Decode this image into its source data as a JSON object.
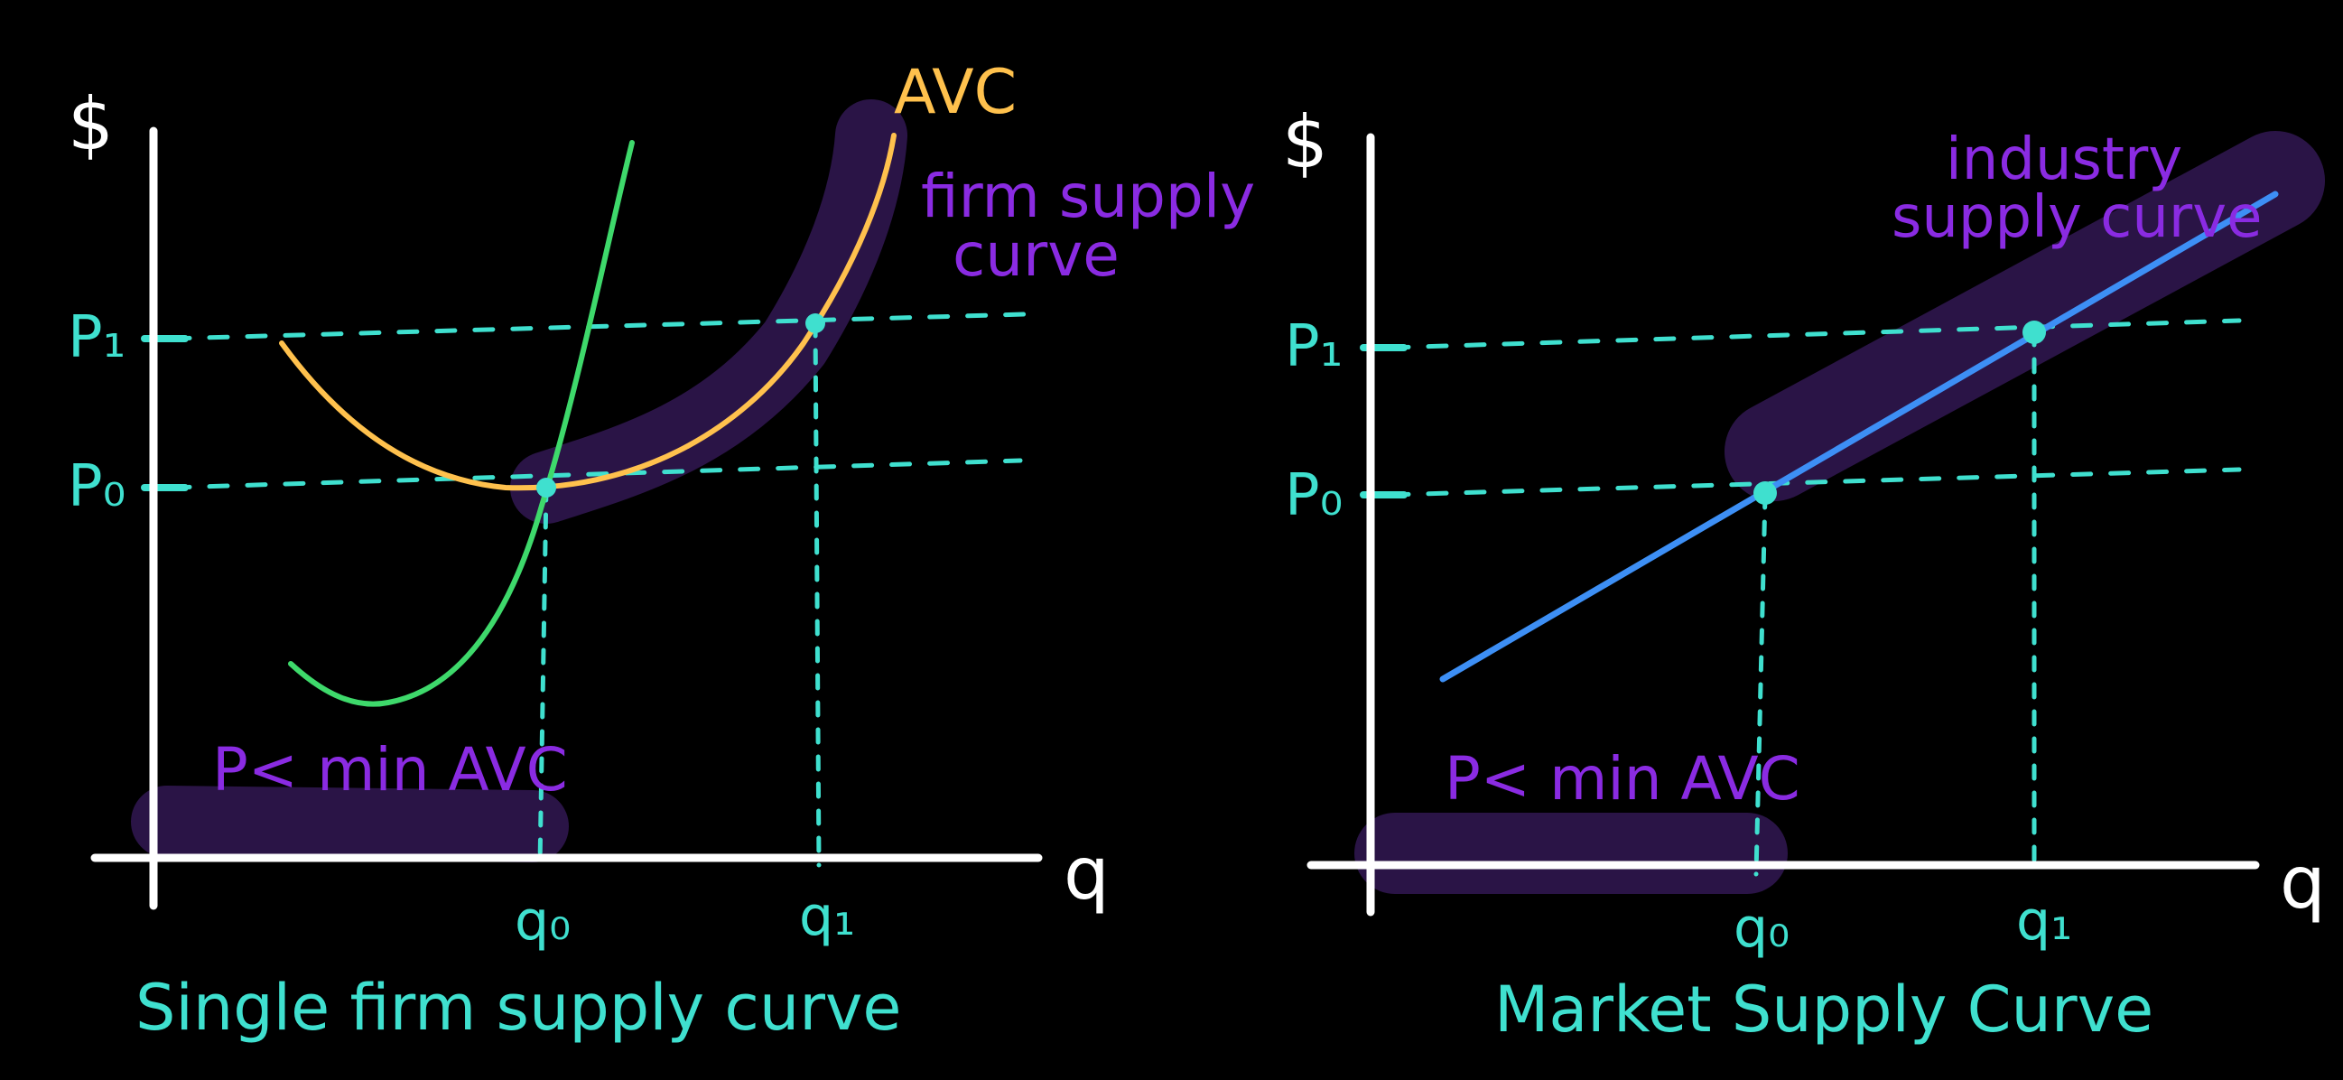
{
  "colors": {
    "background": "#000000",
    "axis": "#ffffff",
    "guide": "#3fe0cf",
    "avc": "#ffc14d",
    "mc": "#3ed96b",
    "industry": "#3d8ff5",
    "purple_text": "#8a2be2",
    "highlight": "#2a1446"
  },
  "left_panel": {
    "y_axis_label": "$",
    "x_axis_label": "q",
    "price_high": "P₁",
    "price_low": "P₀",
    "qty_low": "q₀",
    "qty_high": "q₁",
    "avc_label": "AVC",
    "supply_label_line1": "firm supply",
    "supply_label_line2": "curve",
    "shutdown_label": "P< min AVC",
    "caption": "Single firm supply curve"
  },
  "right_panel": {
    "y_axis_label": "$",
    "x_axis_label": "q",
    "price_high": "P₁",
    "price_low": "P₀",
    "qty_low": "q₀",
    "qty_high": "q₁",
    "supply_label_line1": "industry",
    "supply_label_line2": "supply curve",
    "shutdown_label": "P< min AVC",
    "caption": "Market Supply Curve"
  }
}
